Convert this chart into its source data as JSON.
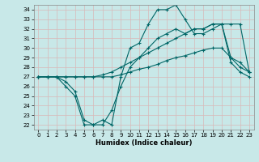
{
  "title": "",
  "xlabel": "Humidex (Indice chaleur)",
  "ylabel": "",
  "bg_color": "#c8e8e8",
  "grid_color": "#b8d8d8",
  "line_color": "#006666",
  "xlim": [
    -0.5,
    23.5
  ],
  "ylim": [
    21.5,
    34.5
  ],
  "yticks": [
    22,
    23,
    24,
    25,
    26,
    27,
    28,
    29,
    30,
    31,
    32,
    33,
    34
  ],
  "xticks": [
    0,
    1,
    2,
    3,
    4,
    5,
    6,
    7,
    8,
    9,
    10,
    11,
    12,
    13,
    14,
    15,
    16,
    17,
    18,
    19,
    20,
    21,
    22,
    23
  ],
  "series": [
    {
      "x": [
        0,
        1,
        2,
        3,
        4,
        5,
        6,
        7,
        8,
        9,
        10,
        11,
        12,
        13,
        14,
        15,
        16,
        17,
        18,
        19,
        20,
        21,
        22,
        23
      ],
      "y": [
        27,
        27,
        27,
        26,
        25,
        22,
        22,
        22.5,
        22,
        27,
        30,
        30.5,
        32.5,
        34,
        34,
        34.5,
        33,
        31.5,
        31.5,
        32,
        32.5,
        29,
        28,
        27.5
      ]
    },
    {
      "x": [
        0,
        1,
        2,
        3,
        4,
        5,
        6,
        7,
        8,
        9,
        10,
        11,
        12,
        13,
        14,
        15,
        16,
        17,
        18,
        19,
        20,
        21,
        22,
        23
      ],
      "y": [
        27,
        27,
        27,
        26.5,
        25.5,
        22.5,
        22,
        22,
        23.5,
        26,
        28,
        29,
        30,
        31,
        31.5,
        32,
        31.5,
        32,
        32,
        32.5,
        32.5,
        28.5,
        27.5,
        27
      ]
    },
    {
      "x": [
        0,
        1,
        2,
        3,
        4,
        5,
        6,
        7,
        8,
        9,
        10,
        11,
        12,
        13,
        14,
        15,
        16,
        17,
        18,
        19,
        20,
        21,
        22,
        23
      ],
      "y": [
        27,
        27,
        27,
        27,
        27,
        27,
        27,
        27.2,
        27.5,
        28,
        28.5,
        29,
        29.5,
        30,
        30.5,
        31,
        31.5,
        32,
        32,
        32.5,
        32.5,
        32.5,
        32.5,
        27.5
      ]
    },
    {
      "x": [
        0,
        1,
        2,
        3,
        4,
        5,
        6,
        7,
        8,
        9,
        10,
        11,
        12,
        13,
        14,
        15,
        16,
        17,
        18,
        19,
        20,
        21,
        22,
        23
      ],
      "y": [
        27,
        27,
        27,
        27,
        27,
        27,
        27,
        27,
        27,
        27.2,
        27.5,
        27.8,
        28,
        28.3,
        28.7,
        29,
        29.2,
        29.5,
        29.8,
        30,
        30,
        29,
        28.5,
        27.5
      ]
    }
  ]
}
